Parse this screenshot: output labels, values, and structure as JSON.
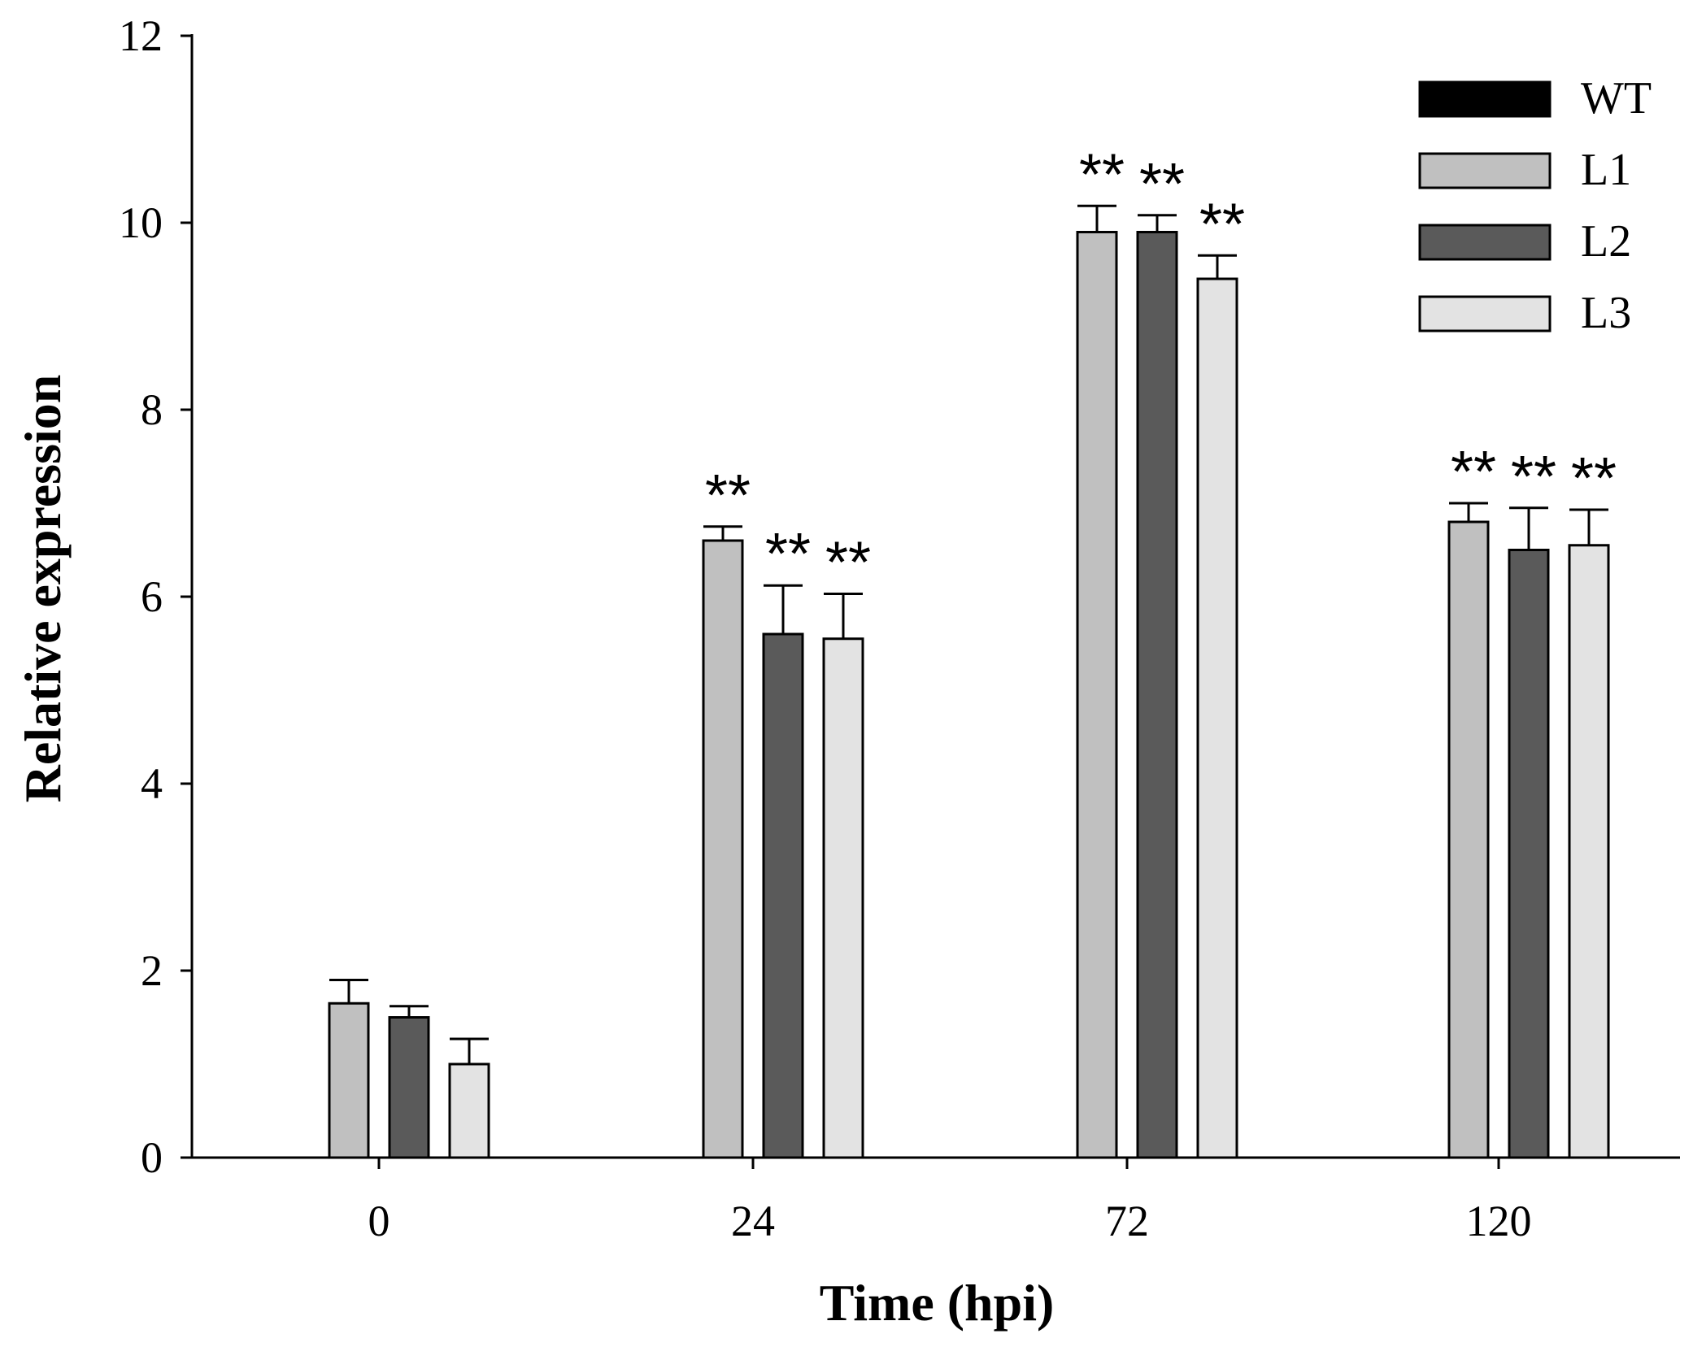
{
  "chart_data": {
    "type": "bar",
    "title": "",
    "xlabel": "Time (hpi)",
    "ylabel": "Relative expression",
    "categories": [
      "0",
      "24",
      "72",
      "120"
    ],
    "ylim": [
      0,
      12
    ],
    "yticks": [
      "0",
      "2",
      "4",
      "6",
      "8",
      "10",
      "12"
    ],
    "legend_position": "top-right",
    "series": [
      {
        "name": "WT",
        "color": "#000000",
        "values": [
          0,
          0,
          0,
          0
        ],
        "errors": [
          0,
          0,
          0,
          0
        ],
        "significance": [
          "",
          "",
          "",
          ""
        ]
      },
      {
        "name": "L1",
        "color": "#c0c0c0",
        "values": [
          1.65,
          6.6,
          9.9,
          6.8
        ],
        "errors": [
          0.25,
          0.15,
          0.28,
          0.2
        ],
        "significance": [
          "",
          "**",
          "**",
          "**"
        ]
      },
      {
        "name": "L2",
        "color": "#5a5a5a",
        "values": [
          1.5,
          5.6,
          9.9,
          6.5
        ],
        "errors": [
          0.12,
          0.52,
          0.18,
          0.45
        ],
        "significance": [
          "",
          "**",
          "**",
          "**"
        ]
      },
      {
        "name": "L3",
        "color": "#e3e3e3",
        "values": [
          1.0,
          5.55,
          9.4,
          6.55
        ],
        "errors": [
          0.27,
          0.48,
          0.25,
          0.38
        ],
        "significance": [
          "",
          "**",
          "**",
          "**"
        ]
      }
    ]
  }
}
